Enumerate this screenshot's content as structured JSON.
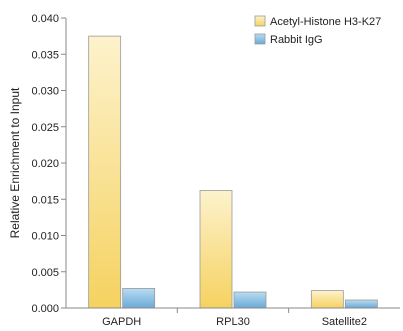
{
  "chart_data": {
    "type": "bar",
    "categories": [
      "GAPDH",
      "RPL30",
      "Satellite2"
    ],
    "series": [
      {
        "name": "Acetyl-Histone H3-K27",
        "values": [
          0.0375,
          0.0162,
          0.0024
        ],
        "color": "#f5d77a"
      },
      {
        "name": "Rabbit IgG",
        "values": [
          0.0027,
          0.0022,
          0.0011
        ],
        "color": "#7fb6dc"
      }
    ],
    "ylabel": "Relative Enrichment to Input",
    "xlabel": "",
    "ylim": [
      0,
      0.04
    ],
    "yticks": [
      0,
      0.005,
      0.01,
      0.015,
      0.02,
      0.025,
      0.03,
      0.035,
      0.04
    ],
    "ytick_labels": [
      "0.000",
      "0.005",
      "0.010",
      "0.015",
      "0.020",
      "0.025",
      "0.030",
      "0.035",
      "0.040"
    ],
    "grid": false,
    "legend_position": "top-right"
  }
}
